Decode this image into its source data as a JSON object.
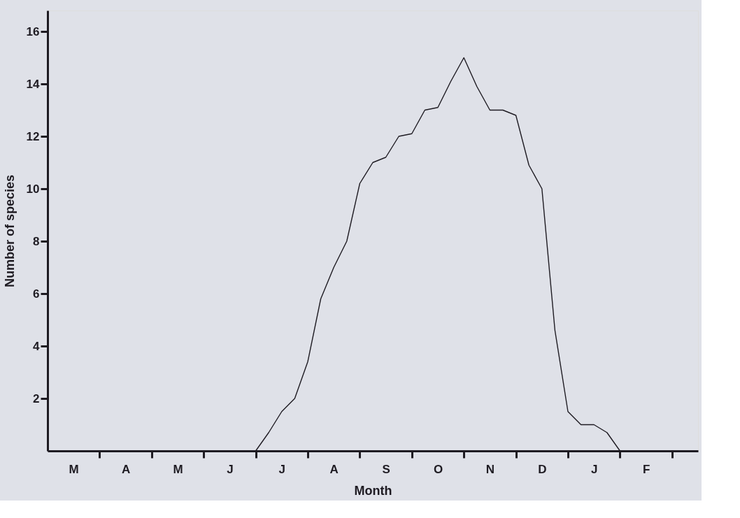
{
  "chart_data": {
    "type": "line",
    "xlabel": "Month",
    "ylabel": "Number of species",
    "categories": [
      null,
      null,
      "M",
      null,
      null,
      null,
      "A",
      null,
      null,
      null,
      "M",
      null,
      null,
      null,
      "J",
      null,
      null,
      null,
      "J",
      null,
      null,
      null,
      "A",
      null,
      null,
      null,
      "S",
      null,
      null,
      null,
      "O",
      null,
      null,
      null,
      "N",
      null,
      null,
      null,
      "D",
      null,
      null,
      null,
      "J",
      null,
      null,
      null,
      "F",
      null,
      null,
      null,
      null
    ],
    "series": [
      {
        "color": "#1e1b22",
        "values": [
          null,
          null,
          null,
          null,
          null,
          null,
          null,
          null,
          null,
          null,
          null,
          null,
          null,
          null,
          null,
          null,
          0,
          0.7,
          1.5,
          2,
          3.4,
          5.8,
          7,
          8,
          10.2,
          11,
          11.2,
          12,
          12.1,
          13,
          13.1,
          14.1,
          15,
          13.9,
          13,
          13,
          12.8,
          10.9,
          10,
          4.6,
          1.5,
          1,
          1,
          0.7,
          0,
          null,
          null,
          null,
          null,
          null,
          null
        ]
      }
    ],
    "ylim": [
      0,
      16.8
    ],
    "yticks": [
      2,
      4,
      6,
      8,
      10,
      12,
      14,
      16
    ],
    "grid": false,
    "marker": "none",
    "line_style": "solid"
  }
}
